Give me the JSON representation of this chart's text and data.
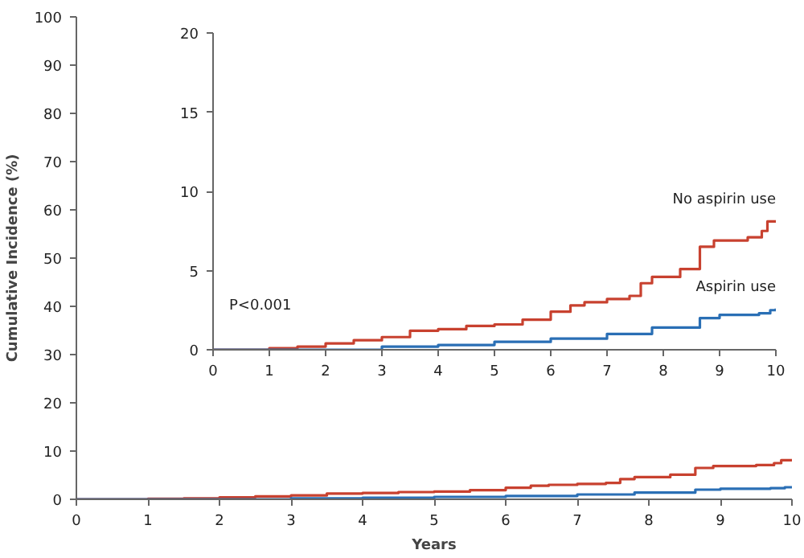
{
  "chart_data": [
    {
      "type": "step",
      "xlabel": "Years",
      "ylabel": "Cumulative Incidence (%)",
      "xlim": [
        0,
        10
      ],
      "ylim": [
        0,
        100
      ],
      "xticks": [
        0,
        1,
        2,
        3,
        4,
        5,
        6,
        7,
        8,
        9,
        10
      ],
      "yticks": [
        0,
        10,
        20,
        30,
        40,
        50,
        60,
        70,
        80,
        90,
        100
      ],
      "grid": false,
      "series": [
        {
          "color": "#c8412f",
          "x": [
            0,
            1,
            1.5,
            2,
            2.5,
            3,
            3.5,
            4,
            4.5,
            5,
            5.5,
            6,
            6.35,
            6.6,
            7,
            7.4,
            7.6,
            7.8,
            8.3,
            8.65,
            8.9,
            9.5,
            9.75,
            9.85,
            10
          ],
          "values": [
            0,
            0.1,
            0.2,
            0.4,
            0.6,
            0.8,
            1.2,
            1.3,
            1.5,
            1.6,
            1.9,
            2.4,
            2.8,
            3.0,
            3.2,
            3.4,
            4.2,
            4.6,
            5.1,
            6.5,
            6.9,
            7.1,
            7.5,
            8.1,
            8.1
          ]
        },
        {
          "color": "#2a6fb5",
          "x": [
            0,
            2,
            3,
            4,
            5,
            6,
            7,
            7.8,
            8.65,
            9,
            9.7,
            9.9,
            10
          ],
          "values": [
            0,
            0,
            0.2,
            0.3,
            0.5,
            0.7,
            1.0,
            1.4,
            2.0,
            2.2,
            2.3,
            2.5,
            2.6
          ]
        }
      ]
    },
    {
      "type": "step",
      "xlim": [
        0,
        10
      ],
      "ylim": [
        0,
        20
      ],
      "xticks": [
        0,
        1,
        2,
        3,
        4,
        5,
        6,
        7,
        8,
        9,
        10
      ],
      "yticks": [
        0,
        5,
        10,
        15,
        20
      ],
      "grid": false,
      "annotations": [
        "P<0.001"
      ],
      "series": [
        {
          "name": "No aspirin use",
          "color": "#c8412f",
          "x": [
            0,
            1,
            1.5,
            2,
            2.5,
            3,
            3.5,
            4,
            4.5,
            5,
            5.5,
            6,
            6.35,
            6.6,
            7,
            7.4,
            7.6,
            7.8,
            8.3,
            8.65,
            8.9,
            9.5,
            9.75,
            9.85,
            10
          ],
          "values": [
            0,
            0.1,
            0.2,
            0.4,
            0.6,
            0.8,
            1.2,
            1.3,
            1.5,
            1.6,
            1.9,
            2.4,
            2.8,
            3.0,
            3.2,
            3.4,
            4.2,
            4.6,
            5.1,
            6.5,
            6.9,
            7.1,
            7.5,
            8.1,
            8.1
          ]
        },
        {
          "name": "Aspirin use",
          "color": "#2a6fb5",
          "x": [
            0,
            2,
            3,
            4,
            5,
            6,
            7,
            7.8,
            8.65,
            9,
            9.7,
            9.9,
            10
          ],
          "values": [
            0,
            0,
            0.2,
            0.3,
            0.5,
            0.7,
            1.0,
            1.4,
            2.0,
            2.2,
            2.3,
            2.5,
            2.6
          ]
        }
      ]
    }
  ]
}
